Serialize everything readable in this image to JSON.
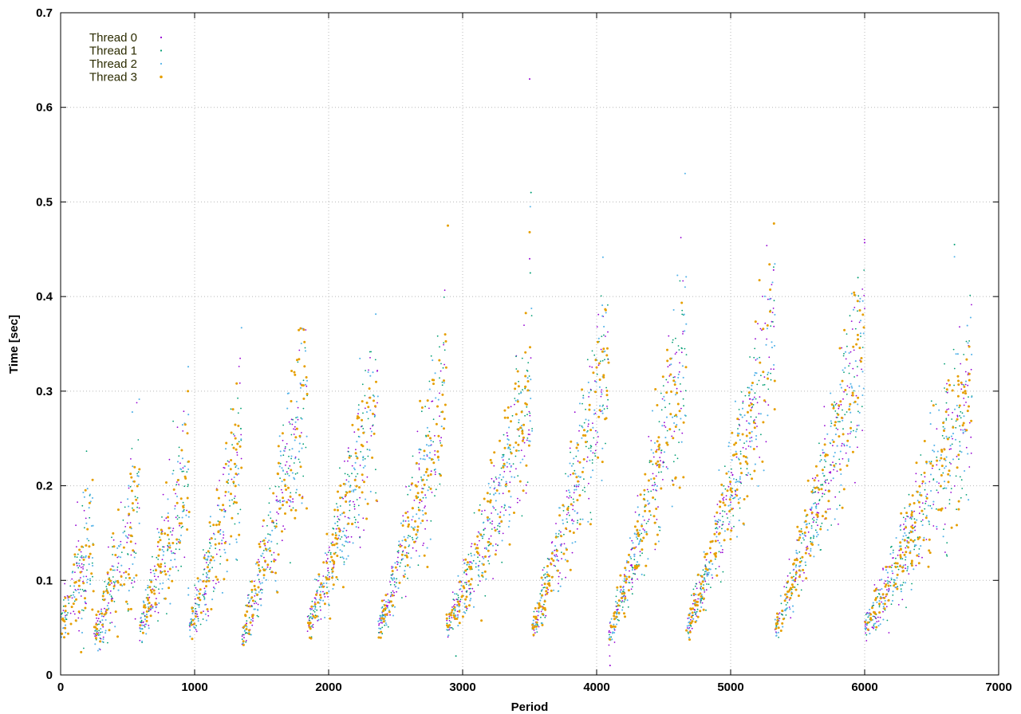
{
  "chart_data": {
    "type": "scatter",
    "title": "",
    "xlabel": "Period",
    "ylabel": "Time [sec]",
    "xlim": [
      0,
      7000
    ],
    "ylim": [
      0,
      0.7
    ],
    "x_ticks": [
      0,
      1000,
      2000,
      3000,
      4000,
      5000,
      6000,
      7000
    ],
    "x_tick_labels": [
      "0",
      "1000",
      "2000",
      "3000",
      "4000",
      "5000",
      "6000",
      "7000"
    ],
    "y_ticks": [
      0,
      0.1,
      0.2,
      0.3,
      0.4,
      0.5,
      0.6,
      0.7
    ],
    "y_tick_labels": [
      "0",
      "0.1",
      "0.2",
      "0.3",
      "0.4",
      "0.5",
      "0.6",
      "0.7"
    ],
    "grid": true,
    "legend_position": "top-left",
    "series": [
      {
        "name": "Thread 0",
        "color": "#9400d3"
      },
      {
        "name": "Thread 1",
        "color": "#009e73"
      },
      {
        "name": "Thread 2",
        "color": "#56b4e9"
      },
      {
        "name": "Thread 3",
        "color": "#e69f00"
      }
    ],
    "cycles": [
      {
        "start": 0,
        "end": 250,
        "low": 0.05,
        "high": 0.16
      },
      {
        "start": 250,
        "end": 590,
        "low": 0.04,
        "high": 0.2
      },
      {
        "start": 590,
        "end": 960,
        "low": 0.05,
        "high": 0.22
      },
      {
        "start": 960,
        "end": 1350,
        "low": 0.05,
        "high": 0.24
      },
      {
        "start": 1350,
        "end": 1840,
        "low": 0.04,
        "high": 0.3
      },
      {
        "start": 1840,
        "end": 2370,
        "low": 0.05,
        "high": 0.3
      },
      {
        "start": 2370,
        "end": 2880,
        "low": 0.05,
        "high": 0.31
      },
      {
        "start": 2880,
        "end": 3520,
        "low": 0.05,
        "high": 0.3
      },
      {
        "start": 3520,
        "end": 4090,
        "low": 0.05,
        "high": 0.34
      },
      {
        "start": 4090,
        "end": 4670,
        "low": 0.04,
        "high": 0.35
      },
      {
        "start": 4670,
        "end": 5330,
        "low": 0.05,
        "high": 0.37
      },
      {
        "start": 5330,
        "end": 6000,
        "low": 0.05,
        "high": 0.36
      },
      {
        "start": 6000,
        "end": 6800,
        "low": 0.05,
        "high": 0.3
      }
    ],
    "outliers": [
      {
        "x": 3500,
        "y": 0.63
      },
      {
        "x": 3510,
        "y": 0.51
      },
      {
        "x": 3505,
        "y": 0.495
      },
      {
        "x": 3500,
        "y": 0.468
      },
      {
        "x": 3500,
        "y": 0.44
      },
      {
        "x": 3505,
        "y": 0.425
      },
      {
        "x": 4660,
        "y": 0.53
      },
      {
        "x": 2890,
        "y": 0.475
      },
      {
        "x": 6000,
        "y": 0.457
      },
      {
        "x": 6670,
        "y": 0.455
      },
      {
        "x": 6670,
        "y": 0.442
      },
      {
        "x": 5290,
        "y": 0.434
      },
      {
        "x": 5320,
        "y": 0.428
      },
      {
        "x": 5950,
        "y": 0.42
      },
      {
        "x": 4660,
        "y": 0.41
      },
      {
        "x": 950,
        "y": 0.3
      },
      {
        "x": 4100,
        "y": 0.01
      },
      {
        "x": 2950,
        "y": 0.02
      }
    ]
  }
}
